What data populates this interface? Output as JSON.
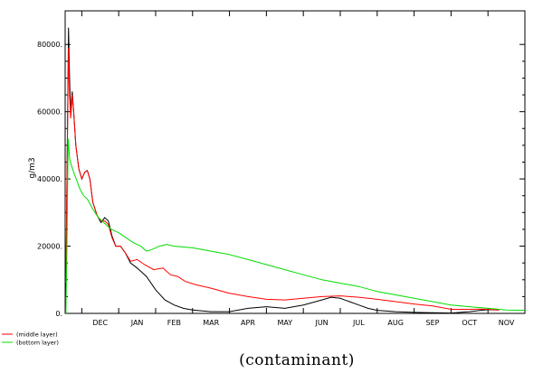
{
  "chart_data": {
    "type": "line",
    "title": "",
    "caption": "(contaminant)",
    "ylabel": "g/m3",
    "xlabel": "",
    "x_unit": "month index (0 = start of DEC)",
    "xlim": [
      -0.45,
      12
    ],
    "ylim": [
      0,
      90000
    ],
    "x_ticks": [
      {
        "label": "DEC",
        "x": 0.5
      },
      {
        "label": "JAN",
        "x": 1.5
      },
      {
        "label": "FEB",
        "x": 2.5
      },
      {
        "label": "MAR",
        "x": 3.5
      },
      {
        "label": "APR",
        "x": 4.5
      },
      {
        "label": "MAY",
        "x": 5.5
      },
      {
        "label": "JUN",
        "x": 6.5
      },
      {
        "label": "JUL",
        "x": 7.5
      },
      {
        "label": "AUG",
        "x": 8.5
      },
      {
        "label": "SEP",
        "x": 9.5
      },
      {
        "label": "OCT",
        "x": 10.5
      },
      {
        "label": "NOV",
        "x": 11.5
      }
    ],
    "y_ticks": [
      {
        "label": "0.",
        "value": 0
      },
      {
        "label": "20000.",
        "value": 20000
      },
      {
        "label": "40000.",
        "value": 40000
      },
      {
        "label": "60000.",
        "value": 60000
      },
      {
        "label": "80000.",
        "value": 80000
      }
    ],
    "grid": false,
    "legend": {
      "placement": "bottom-left"
    },
    "series": [
      {
        "name": "",
        "color": "#000000",
        "points": [
          [
            -0.43,
            5000
          ],
          [
            -0.39,
            50000
          ],
          [
            -0.36,
            85000
          ],
          [
            -0.33,
            70000
          ],
          [
            -0.3,
            60000
          ],
          [
            -0.26,
            66000
          ],
          [
            -0.22,
            60000
          ],
          [
            -0.16,
            50000
          ],
          [
            -0.08,
            43000
          ],
          [
            0.0,
            40000
          ],
          [
            0.08,
            42000
          ],
          [
            0.15,
            42500
          ],
          [
            0.22,
            40000
          ],
          [
            0.3,
            33000
          ],
          [
            0.42,
            29000
          ],
          [
            0.52,
            27000
          ],
          [
            0.62,
            28500
          ],
          [
            0.72,
            27500
          ],
          [
            0.82,
            23000
          ],
          [
            0.92,
            20000
          ],
          [
            1.05,
            20000
          ],
          [
            1.18,
            18000
          ],
          [
            1.32,
            15000
          ],
          [
            1.5,
            13500
          ],
          [
            1.75,
            11000
          ],
          [
            2.0,
            7000
          ],
          [
            2.25,
            4000
          ],
          [
            2.5,
            2500
          ],
          [
            2.75,
            1500
          ],
          [
            3.0,
            1000
          ],
          [
            3.5,
            500
          ],
          [
            4.0,
            500
          ],
          [
            4.5,
            1500
          ],
          [
            5.0,
            2000
          ],
          [
            5.5,
            1500
          ],
          [
            6.0,
            2500
          ],
          [
            6.5,
            4000
          ],
          [
            6.75,
            4800
          ],
          [
            7.0,
            4500
          ],
          [
            7.25,
            3500
          ],
          [
            7.5,
            2500
          ],
          [
            7.75,
            1500
          ],
          [
            8.0,
            900
          ],
          [
            8.5,
            500
          ],
          [
            9.0,
            300
          ],
          [
            9.5,
            200
          ],
          [
            10.0,
            100
          ],
          [
            10.5,
            500
          ],
          [
            10.8,
            900
          ],
          [
            11.0,
            1100
          ],
          [
            11.3,
            1000
          ]
        ]
      },
      {
        "name": "(middle layer)",
        "color": "#ff0000",
        "points": [
          [
            -0.43,
            9000
          ],
          [
            -0.4,
            40000
          ],
          [
            -0.36,
            79000
          ],
          [
            -0.33,
            65000
          ],
          [
            -0.3,
            58000
          ],
          [
            -0.26,
            65000
          ],
          [
            -0.22,
            60000
          ],
          [
            -0.16,
            50000
          ],
          [
            -0.08,
            43000
          ],
          [
            0.0,
            40000
          ],
          [
            0.08,
            42000
          ],
          [
            0.15,
            42500
          ],
          [
            0.22,
            40000
          ],
          [
            0.3,
            33000
          ],
          [
            0.42,
            29000
          ],
          [
            0.52,
            27500
          ],
          [
            0.62,
            27500
          ],
          [
            0.72,
            26500
          ],
          [
            0.82,
            22500
          ],
          [
            0.92,
            20000
          ],
          [
            1.05,
            20000
          ],
          [
            1.18,
            18000
          ],
          [
            1.32,
            15500
          ],
          [
            1.5,
            16000
          ],
          [
            1.7,
            14500
          ],
          [
            1.95,
            13000
          ],
          [
            2.2,
            13500
          ],
          [
            2.4,
            11500
          ],
          [
            2.6,
            11000
          ],
          [
            2.8,
            9500
          ],
          [
            3.1,
            8500
          ],
          [
            3.5,
            7500
          ],
          [
            4.0,
            6000
          ],
          [
            4.5,
            5000
          ],
          [
            5.0,
            4200
          ],
          [
            5.5,
            4000
          ],
          [
            6.0,
            4500
          ],
          [
            6.5,
            5000
          ],
          [
            7.0,
            5200
          ],
          [
            7.5,
            4800
          ],
          [
            8.0,
            4200
          ],
          [
            8.5,
            3500
          ],
          [
            9.0,
            2800
          ],
          [
            9.5,
            2200
          ],
          [
            10.0,
            1200
          ],
          [
            10.5,
            1200
          ],
          [
            10.8,
            1300
          ],
          [
            11.0,
            1200
          ],
          [
            11.3,
            1000
          ]
        ]
      },
      {
        "name": "(bottom layer)",
        "color": "#00dd00",
        "points": [
          [
            -0.43,
            0
          ],
          [
            -0.4,
            20000
          ],
          [
            -0.37,
            52000
          ],
          [
            -0.33,
            46000
          ],
          [
            -0.28,
            44000
          ],
          [
            -0.22,
            42000
          ],
          [
            -0.15,
            40000
          ],
          [
            -0.05,
            37000
          ],
          [
            0.05,
            35000
          ],
          [
            0.15,
            34000
          ],
          [
            0.3,
            31000
          ],
          [
            0.45,
            28500
          ],
          [
            0.6,
            27000
          ],
          [
            0.8,
            25000
          ],
          [
            1.0,
            24000
          ],
          [
            1.2,
            22500
          ],
          [
            1.4,
            21000
          ],
          [
            1.6,
            20000
          ],
          [
            1.75,
            18500
          ],
          [
            1.9,
            19000
          ],
          [
            2.1,
            20000
          ],
          [
            2.3,
            20500
          ],
          [
            2.5,
            20000
          ],
          [
            3.0,
            19500
          ],
          [
            3.5,
            18500
          ],
          [
            4.0,
            17500
          ],
          [
            4.5,
            16000
          ],
          [
            5.0,
            14500
          ],
          [
            5.5,
            13000
          ],
          [
            6.0,
            11500
          ],
          [
            6.5,
            10000
          ],
          [
            7.0,
            9000
          ],
          [
            7.5,
            8000
          ],
          [
            8.0,
            6500
          ],
          [
            8.5,
            5500
          ],
          [
            9.0,
            4500
          ],
          [
            9.5,
            3500
          ],
          [
            10.0,
            2500
          ],
          [
            10.5,
            2000
          ],
          [
            11.0,
            1500
          ],
          [
            11.5,
            1000
          ],
          [
            12.0,
            900
          ]
        ]
      }
    ]
  }
}
